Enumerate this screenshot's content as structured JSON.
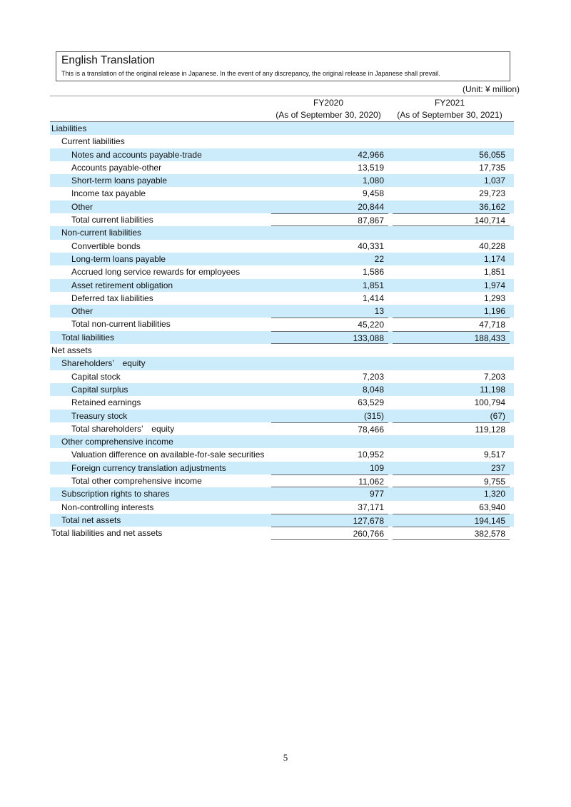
{
  "title_box": {
    "title": "English Translation",
    "subtitle": "This is a translation of the original release in Japanese. In the event of any discrepancy, the original release in Japanese shall prevail."
  },
  "unit": "(Unit: ¥ million)",
  "columns": [
    {
      "year": "FY2020",
      "date": "(As of September 30, 2020)"
    },
    {
      "year": "FY2021",
      "date": "(As of September 30, 2021)"
    }
  ],
  "rows": [
    {
      "label": "Liabilities",
      "level": 0,
      "v1": "",
      "v2": ""
    },
    {
      "label": "Current liabilities",
      "level": 1,
      "v1": "",
      "v2": ""
    },
    {
      "label": "Notes and accounts payable-trade",
      "level": 2,
      "v1": "42,966",
      "v2": "56,055"
    },
    {
      "label": "Accounts payable-other",
      "level": 2,
      "v1": "13,519",
      "v2": "17,735"
    },
    {
      "label": "Short-term loans payable",
      "level": 2,
      "v1": "1,080",
      "v2": "1,037"
    },
    {
      "label": "Income tax payable",
      "level": 2,
      "v1": "9,458",
      "v2": "29,723"
    },
    {
      "label": "Other",
      "level": 2,
      "v1": "20,844",
      "v2": "36,162"
    },
    {
      "label": "Total current liabilities",
      "level": 2,
      "v1": "87,867",
      "v2": "140,714",
      "rule": "both"
    },
    {
      "label": "Non-current liabilities",
      "level": 1,
      "v1": "",
      "v2": ""
    },
    {
      "label": "Convertible bonds",
      "level": 2,
      "v1": "40,331",
      "v2": "40,228"
    },
    {
      "label": "Long-term loans payable",
      "level": 2,
      "v1": "22",
      "v2": "1,174"
    },
    {
      "label": "Accrued long service rewards for employees",
      "level": 2,
      "v1": "1,586",
      "v2": "1,851"
    },
    {
      "label": "Asset retirement obligation",
      "level": 2,
      "v1": "1,851",
      "v2": "1,974"
    },
    {
      "label": "Deferred tax liabilities",
      "level": 2,
      "v1": "1,414",
      "v2": "1,293"
    },
    {
      "label": "Other",
      "level": 2,
      "v1": "13",
      "v2": "1,196"
    },
    {
      "label": "Total non-current liabilities",
      "level": 2,
      "v1": "45,220",
      "v2": "47,718",
      "rule": "top"
    },
    {
      "label": "Total liabilities",
      "level": 1,
      "v1": "133,088",
      "v2": "188,433",
      "rule": "both"
    },
    {
      "label": "Net assets",
      "level": 0,
      "v1": "",
      "v2": ""
    },
    {
      "label": "Shareholders’　equity",
      "level": 1,
      "v1": "",
      "v2": ""
    },
    {
      "label": "Capital stock",
      "level": 2,
      "v1": "7,203",
      "v2": "7,203"
    },
    {
      "label": "Capital surplus",
      "level": 2,
      "v1": "8,048",
      "v2": "11,198"
    },
    {
      "label": "Retained earnings",
      "level": 2,
      "v1": "63,529",
      "v2": "100,794"
    },
    {
      "label": "Treasury stock",
      "level": 2,
      "v1": "(315)",
      "v2": "(67)"
    },
    {
      "label": "Total shareholders’　equity",
      "level": 2,
      "v1": "78,466",
      "v2": "119,128",
      "rule": "top"
    },
    {
      "label": "Other comprehensive income",
      "level": 1,
      "v1": "",
      "v2": ""
    },
    {
      "label": "Valuation difference on available-for-sale securities",
      "level": 2,
      "v1": "10,952",
      "v2": "9,517"
    },
    {
      "label": "Foreign currency translation adjustments",
      "level": 2,
      "v1": "109",
      "v2": "237"
    },
    {
      "label": "Total other comprehensive income",
      "level": 2,
      "v1": "11,062",
      "v2": "9,755",
      "rule": "both"
    },
    {
      "label": "Subscription rights to shares",
      "level": 1,
      "v1": "977",
      "v2": "1,320"
    },
    {
      "label": "Non-controlling interests",
      "level": 1,
      "v1": "37,171",
      "v2": "63,940"
    },
    {
      "label": "Total net assets",
      "level": 1,
      "v1": "127,678",
      "v2": "194,145",
      "rule": "top"
    },
    {
      "label": "Total liabilities and net assets",
      "level": 0,
      "v1": "260,766",
      "v2": "382,578",
      "rule": "both"
    }
  ],
  "page_number": "5"
}
